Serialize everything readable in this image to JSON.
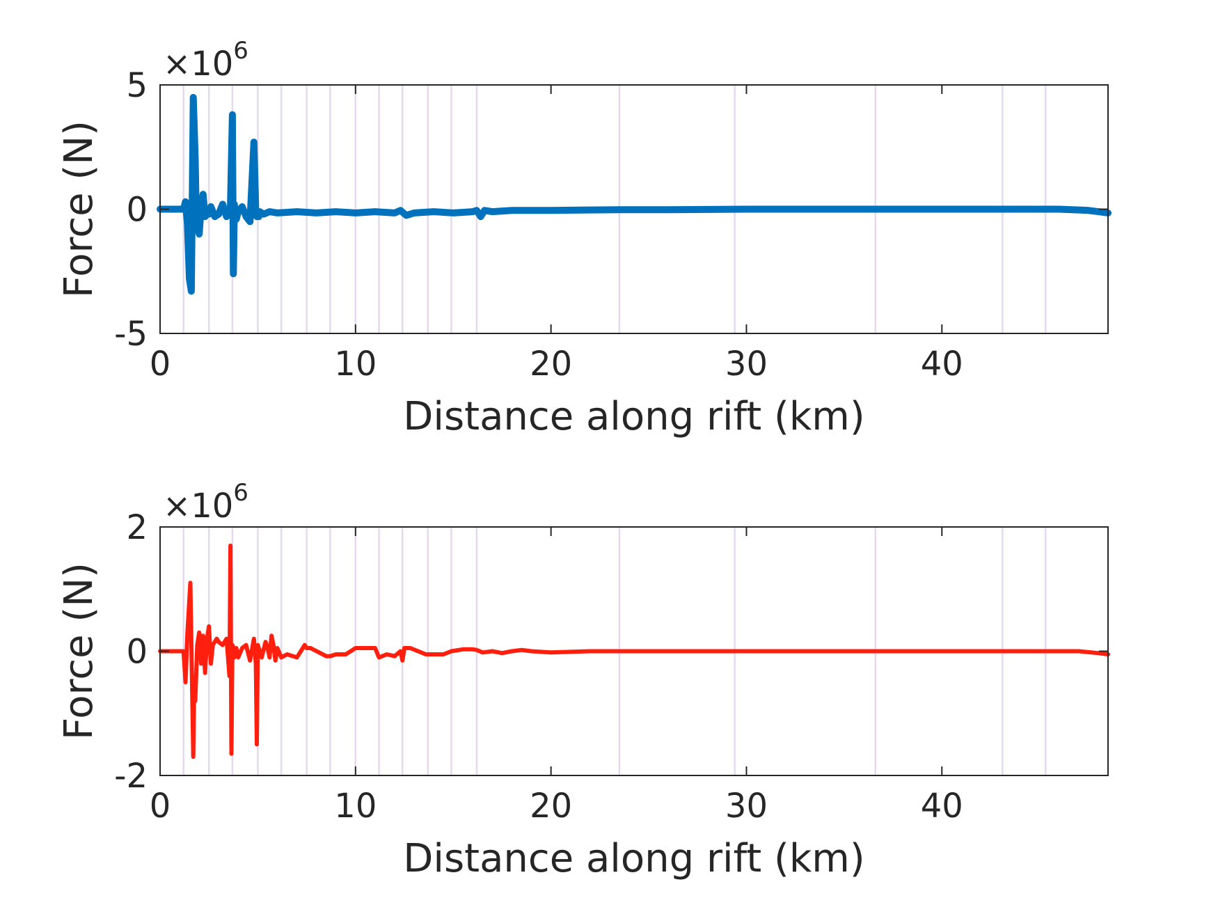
{
  "chart_data": [
    {
      "type": "line",
      "title": "",
      "xlabel": "Distance along rift (km)",
      "ylabel": "Force (N)",
      "y_exponent": {
        "base": "×10",
        "power": "6"
      },
      "xlim": [
        0,
        48.5
      ],
      "ylim": [
        -5,
        5
      ],
      "x_ticks": [
        0,
        10,
        20,
        30,
        40
      ],
      "y_ticks": [
        -5,
        0,
        5
      ],
      "grid": "off",
      "vertical_markers_km": [
        1.2,
        2.5,
        3.7,
        5.0,
        6.2,
        7.5,
        8.7,
        10.0,
        11.2,
        12.4,
        13.7,
        14.9,
        16.2,
        23.5,
        29.4,
        36.6,
        43.1,
        45.3
      ],
      "colors": {
        "series": "#0072BD",
        "markers": "#e4d9ef"
      },
      "series": [
        {
          "x": [
            0,
            1.2,
            1.3,
            1.4,
            1.5,
            1.6,
            1.7,
            1.8,
            1.85,
            2.0,
            2.1,
            2.2,
            2.3,
            2.4,
            2.5,
            2.6,
            2.8,
            3.0,
            3.2,
            3.4,
            3.6,
            3.7,
            3.75,
            3.8,
            3.85,
            3.9,
            4.0,
            4.2,
            4.4,
            4.6,
            4.8,
            4.9,
            4.95,
            5.0,
            5.05,
            5.1,
            5.3,
            5.6,
            6.0,
            7.0,
            8.0,
            9.0,
            10.0,
            11.0,
            12.0,
            12.3,
            12.6,
            13.0,
            14.0,
            15.0,
            16.0,
            16.2,
            16.4,
            16.6,
            17.0,
            18.0,
            19.0,
            20.0,
            22.0,
            24.0,
            26.0,
            28.0,
            30.0,
            32.0,
            35.0,
            40.0,
            44.0,
            46.0,
            47.0,
            47.5,
            48.0,
            48.5
          ],
          "y": [
            0,
            0,
            0.3,
            -0.6,
            -2.8,
            -3.3,
            4.5,
            2.0,
            -0.4,
            -1.0,
            0.1,
            0.6,
            -0.3,
            -0.1,
            -0.2,
            0.1,
            -0.3,
            -0.2,
            0.2,
            -0.3,
            0.1,
            3.8,
            -2.6,
            0.2,
            -0.2,
            -0.4,
            -0.1,
            0.1,
            -0.3,
            -0.5,
            2.7,
            -0.2,
            -0.3,
            -0.2,
            -0.3,
            -0.1,
            -0.2,
            -0.1,
            -0.15,
            -0.1,
            -0.15,
            -0.1,
            -0.15,
            -0.1,
            -0.15,
            -0.05,
            -0.25,
            -0.15,
            -0.1,
            -0.15,
            -0.1,
            -0.05,
            -0.3,
            -0.05,
            -0.1,
            -0.05,
            -0.05,
            -0.05,
            -0.03,
            -0.02,
            -0.02,
            -0.01,
            0,
            0,
            0,
            0,
            0,
            0,
            -0.03,
            -0.05,
            -0.1,
            -0.15
          ]
        }
      ]
    },
    {
      "type": "line",
      "title": "",
      "xlabel": "Distance along rift (km)",
      "ylabel": "Force (N)",
      "y_exponent": {
        "base": "×10",
        "power": "6"
      },
      "xlim": [
        0,
        48.5
      ],
      "ylim": [
        -2,
        2
      ],
      "x_ticks": [
        0,
        10,
        20,
        30,
        40
      ],
      "y_ticks": [
        -2,
        0,
        2
      ],
      "grid": "off",
      "vertical_markers_km": [
        1.2,
        2.5,
        3.7,
        5.0,
        6.2,
        7.5,
        8.7,
        10.0,
        11.2,
        12.4,
        13.7,
        14.9,
        16.2,
        23.5,
        29.4,
        36.6,
        43.1,
        45.3
      ],
      "colors": {
        "series": "#FF1F0F",
        "markers": "#e4d9ef"
      },
      "series": [
        {
          "x": [
            0,
            1.2,
            1.3,
            1.4,
            1.55,
            1.7,
            1.75,
            1.8,
            1.9,
            2.0,
            2.1,
            2.2,
            2.3,
            2.4,
            2.5,
            2.6,
            2.7,
            2.8,
            2.9,
            3.0,
            3.2,
            3.4,
            3.55,
            3.6,
            3.65,
            3.7,
            3.75,
            3.8,
            3.9,
            4.0,
            4.2,
            4.4,
            4.6,
            4.8,
            4.9,
            4.95,
            5.0,
            5.2,
            5.4,
            5.5,
            5.6,
            5.7,
            5.8,
            5.9,
            6.0,
            6.2,
            6.5,
            7.0,
            7.4,
            7.5,
            7.7,
            8.5,
            8.7,
            9.0,
            9.5,
            10.0,
            10.5,
            11.0,
            11.2,
            11.6,
            12.0,
            12.3,
            12.4,
            12.5,
            12.8,
            13.2,
            13.6,
            13.7,
            14.5,
            14.9,
            15.5,
            16.0,
            16.2,
            16.5,
            17.0,
            17.5,
            18.0,
            18.5,
            19.0,
            20.0,
            22.0,
            24.0,
            26.0,
            28.0,
            30.0,
            35.0,
            40.0,
            45.0,
            47.0,
            48.0,
            48.5
          ],
          "y": [
            0,
            0,
            -0.5,
            0.3,
            1.1,
            -1.7,
            -0.5,
            -0.8,
            0.1,
            0.3,
            -0.2,
            0.25,
            -0.35,
            0.2,
            0.4,
            -0.2,
            0.1,
            0.15,
            0.2,
            0.15,
            0.1,
            0.2,
            -0.4,
            1.7,
            -1.65,
            0.1,
            0.05,
            -0.1,
            0.05,
            -0.1,
            0.05,
            0.1,
            -0.15,
            0.2,
            -0.2,
            -1.5,
            0.1,
            -0.1,
            0.15,
            0.05,
            -0.1,
            0.25,
            0.1,
            -0.15,
            0.05,
            -0.1,
            -0.05,
            -0.1,
            0.1,
            0.05,
            0.05,
            -0.08,
            -0.08,
            -0.05,
            -0.05,
            0.05,
            0.05,
            0.05,
            -0.1,
            -0.05,
            -0.08,
            0.0,
            -0.15,
            0.05,
            0.05,
            0.0,
            -0.05,
            -0.05,
            -0.05,
            0.0,
            0.03,
            0.03,
            0.02,
            -0.02,
            0.0,
            -0.03,
            0.0,
            0.02,
            0.0,
            -0.02,
            0.0,
            0.0,
            0.0,
            0.0,
            0.0,
            0.0,
            0.0,
            0.0,
            0.0,
            -0.03,
            -0.05
          ]
        }
      ]
    }
  ]
}
